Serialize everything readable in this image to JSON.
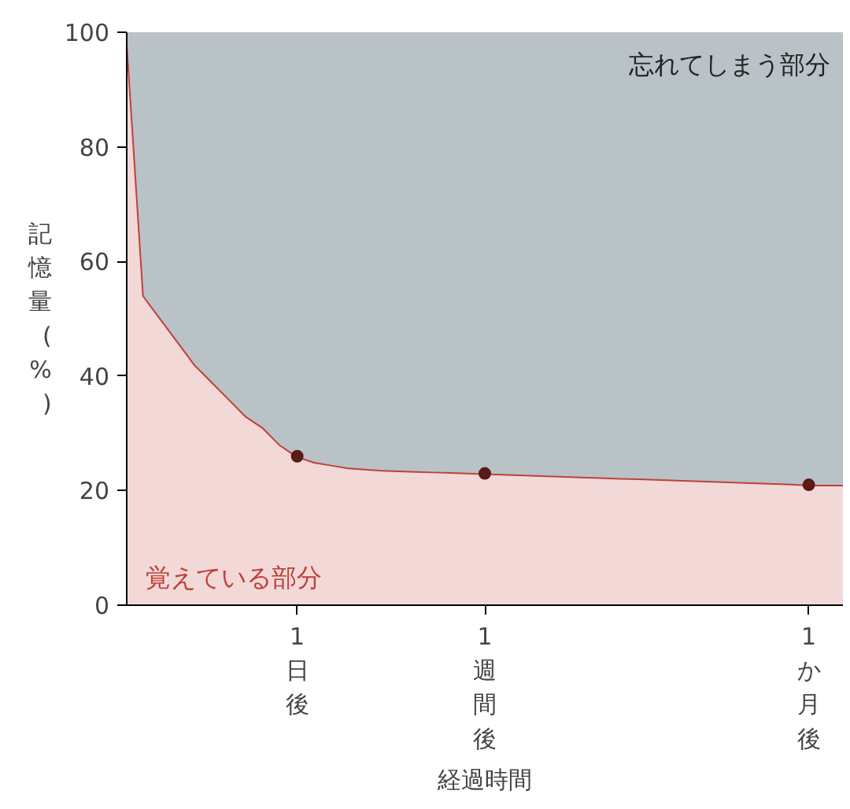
{
  "chart_data": {
    "type": "area",
    "stacked": true,
    "xlabel": "経過時間",
    "ylabel": "記憶量(%)",
    "categories": [
      null,
      null,
      null,
      null,
      null,
      null,
      null,
      null,
      null,
      null,
      "1日後",
      null,
      null,
      null,
      null,
      null,
      null,
      null,
      null,
      null,
      null,
      "1週間後",
      null,
      null,
      null,
      null,
      null,
      null,
      null,
      null,
      null,
      null,
      null,
      null,
      null,
      null,
      null,
      null,
      null,
      null,
      "1か月後",
      null,
      null
    ],
    "ylim": [
      0,
      100
    ],
    "yticks": [
      0,
      20,
      40,
      60,
      80,
      100
    ],
    "grid": false,
    "series": [
      {
        "name": "覚えている部分",
        "color": "#c0403a",
        "values": [
          100,
          54,
          50,
          46,
          42,
          39,
          36,
          33,
          31,
          28,
          26,
          25,
          24.5,
          24,
          23.8,
          23.6,
          23.5,
          23.4,
          23.3,
          23.2,
          23.1,
          23,
          22.9,
          22.8,
          22.7,
          22.6,
          22.5,
          22.4,
          22.3,
          22.2,
          22.1,
          22,
          21.9,
          21.8,
          21.7,
          21.6,
          21.5,
          21.4,
          21.3,
          21.2,
          21,
          21,
          21
        ]
      },
      {
        "name": "忘れてしまう部分",
        "color": "#b9c2c6",
        "values": [
          0,
          46,
          50,
          54,
          58,
          61,
          64,
          67,
          69,
          72,
          74,
          75,
          75.5,
          76,
          76.2,
          76.4,
          76.5,
          76.6,
          76.7,
          76.8,
          76.9,
          77,
          77.1,
          77.2,
          77.3,
          77.4,
          77.5,
          77.6,
          77.7,
          77.8,
          77.9,
          78,
          78.1,
          78.2,
          78.3,
          78.4,
          78.5,
          78.6,
          78.7,
          78.8,
          79,
          79,
          79
        ]
      },
      {
        "type": "scatter",
        "color": "#5a1a18",
        "marker": "circle",
        "values": [
          null,
          null,
          null,
          null,
          null,
          null,
          null,
          null,
          null,
          null,
          26,
          null,
          null,
          null,
          null,
          null,
          null,
          null,
          null,
          null,
          null,
          23,
          null,
          null,
          null,
          null,
          null,
          null,
          null,
          null,
          null,
          null,
          null,
          null,
          null,
          null,
          null,
          null,
          null,
          null,
          21,
          null,
          null
        ]
      }
    ]
  }
}
